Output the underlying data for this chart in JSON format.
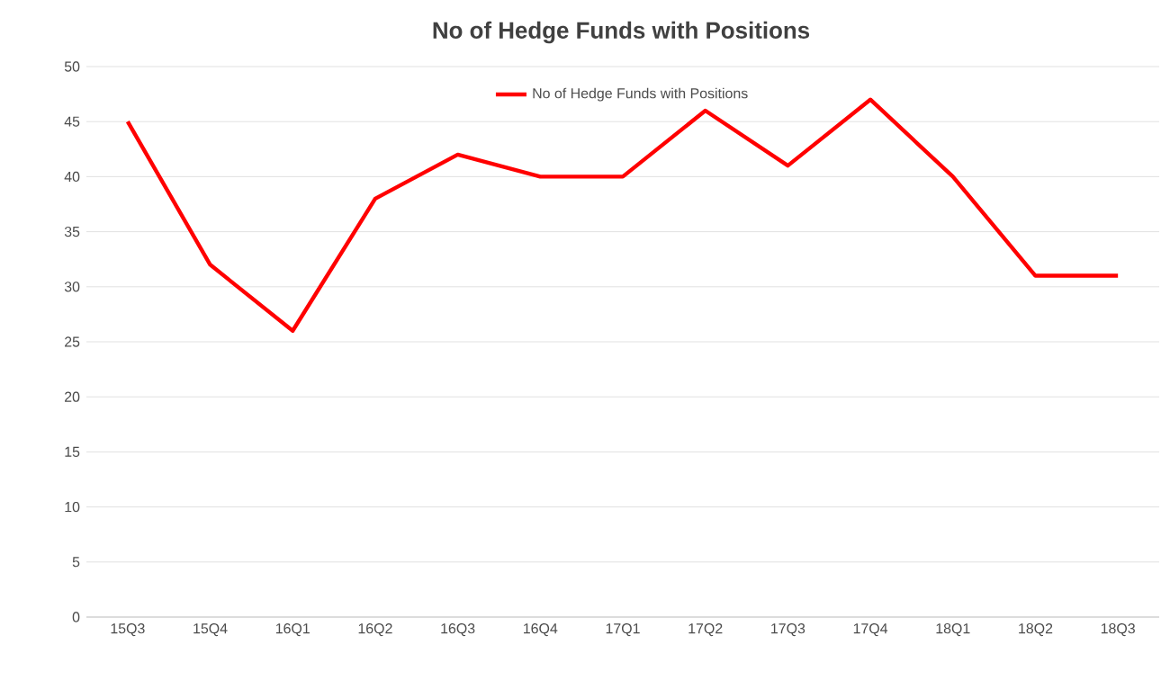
{
  "chart_data": {
    "type": "line",
    "title": "No of Hedge Funds with Positions",
    "categories": [
      "15Q3",
      "15Q4",
      "16Q1",
      "16Q2",
      "16Q3",
      "16Q4",
      "17Q1",
      "17Q2",
      "17Q3",
      "17Q4",
      "18Q1",
      "18Q2",
      "18Q3"
    ],
    "series": [
      {
        "name": "No of Hedge Funds with Positions",
        "color": "#ff0000",
        "values": [
          45,
          32,
          26,
          38,
          42,
          40,
          40,
          46,
          41,
          47,
          40,
          31,
          31
        ]
      }
    ],
    "ylim": [
      0,
      50
    ],
    "yticks": [
      0,
      5,
      10,
      15,
      20,
      25,
      30,
      35,
      40,
      45,
      50
    ],
    "grid": "y",
    "legend": "top",
    "marker": "none",
    "line_style": "solid"
  }
}
